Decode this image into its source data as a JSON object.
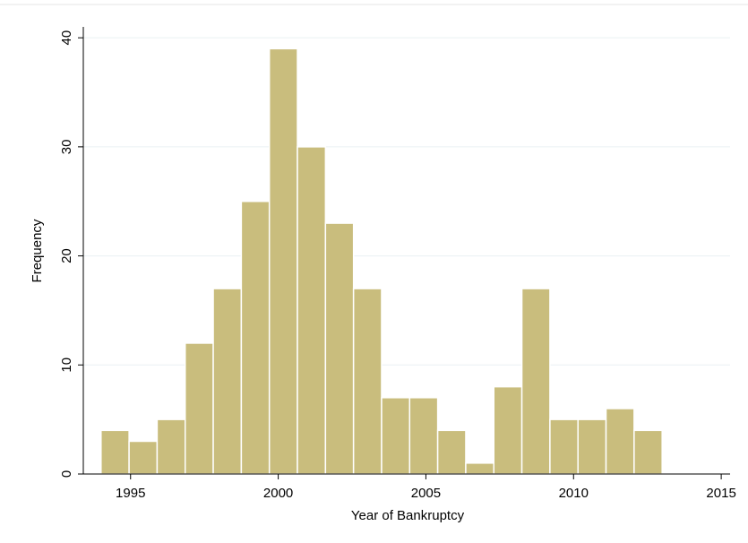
{
  "chart_data": {
    "type": "histogram",
    "xlabel": "Year of Bankruptcy",
    "ylabel": "Frequency",
    "bins": [
      1994,
      1994.95,
      1995.9,
      1996.85,
      1997.8,
      1998.75,
      1999.7,
      2000.65,
      2001.6,
      2002.55,
      2003.5,
      2004.45,
      2005.4,
      2006.35,
      2007.3,
      2008.25,
      2009.2,
      2010.15,
      2011.1,
      2012.05,
      2013
    ],
    "values": [
      4,
      3,
      5,
      12,
      17,
      25,
      39,
      30,
      23,
      17,
      7,
      7,
      4,
      1,
      8,
      17,
      5,
      5,
      6,
      4
    ],
    "color": "#c9bd7d",
    "xlim": [
      1993.4,
      2015.3
    ],
    "xticks": [
      1995,
      2000,
      2005,
      2010,
      2015
    ],
    "ylim": [
      0,
      41
    ],
    "yticks": [
      0,
      10,
      20,
      30,
      40
    ],
    "grid": true
  }
}
